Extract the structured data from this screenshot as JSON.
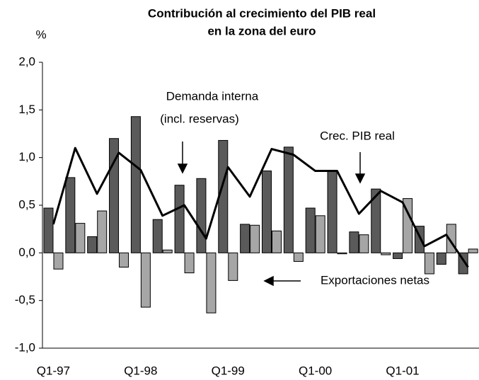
{
  "chart_data": {
    "type": "bar_line",
    "title": [
      "Contribución al crecimiento del PIB real",
      "en la zona del euro"
    ],
    "y_unit": "%",
    "categories": [
      "Q1-97",
      null,
      null,
      null,
      "Q1-98",
      null,
      null,
      null,
      "Q1-99",
      null,
      null,
      null,
      "Q1-00",
      null,
      null,
      null,
      "Q1-01",
      null,
      null,
      null
    ],
    "series": [
      {
        "kind": "bar",
        "color": "#5a5a5a",
        "values": [
          0.47,
          0.79,
          0.17,
          1.2,
          1.43,
          0.35,
          0.71,
          0.78,
          1.18,
          0.3,
          0.86,
          1.11,
          0.47,
          0.86,
          0.22,
          0.67,
          -0.06,
          0.28,
          -0.12,
          -0.22
        ]
      },
      {
        "kind": "bar",
        "color": "#a6a6a6",
        "values": [
          -0.17,
          0.31,
          0.44,
          -0.15,
          -0.57,
          0.03,
          -0.21,
          -0.63,
          -0.29,
          0.29,
          0.23,
          -0.09,
          0.39,
          -0.01,
          0.19,
          -0.02,
          0.57,
          -0.22,
          0.3,
          0.04
        ]
      },
      {
        "kind": "line",
        "color": "#000000",
        "values": [
          0.3,
          1.1,
          0.62,
          1.05,
          0.87,
          0.39,
          0.5,
          0.15,
          0.9,
          0.59,
          1.09,
          1.03,
          0.86,
          0.86,
          0.41,
          0.65,
          0.53,
          0.07,
          0.19,
          -0.15
        ]
      }
    ],
    "annotations": [
      "Demanda interna",
      "(incl. reservas)",
      "Crec. PIB real",
      "Exportaciones netas"
    ],
    "ylim": [
      -1,
      2
    ],
    "yticks": [
      {
        "value": -1,
        "label": "-1,0"
      },
      {
        "value": -0.5,
        "label": "-0,5"
      },
      {
        "value": 0,
        "label": "0,0"
      },
      {
        "value": 0.5,
        "label": "0,5"
      },
      {
        "value": 1,
        "label": "1,0"
      },
      {
        "value": 1.5,
        "label": "1,5"
      },
      {
        "value": 2,
        "label": "2,0"
      }
    ]
  }
}
